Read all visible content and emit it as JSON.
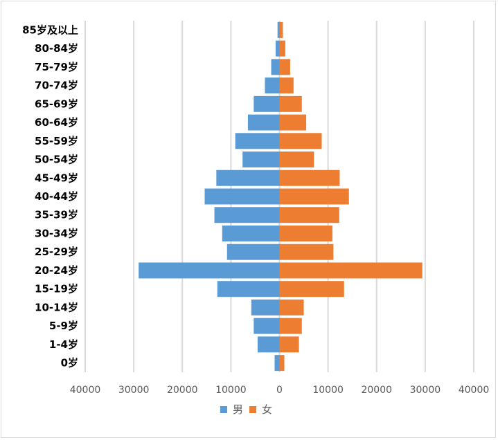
{
  "chart_data": {
    "type": "bar",
    "orientation": "horizontal",
    "layout": "population-pyramid",
    "categories": [
      "0岁",
      "1-4岁",
      "5-9岁",
      "10-14岁",
      "15-19岁",
      "20-24岁",
      "25-29岁",
      "30-34岁",
      "35-39岁",
      "40-44岁",
      "45-49岁",
      "50-54岁",
      "55-59岁",
      "60-64岁",
      "65-69岁",
      "70-74岁",
      "75-79岁",
      "80-84岁",
      "85岁及以上"
    ],
    "series": [
      {
        "name": "男",
        "color": "#5b9bd5",
        "values": [
          1000,
          4500,
          5300,
          5800,
          12800,
          29000,
          10800,
          11800,
          13400,
          15400,
          13000,
          7600,
          9100,
          6500,
          5300,
          3000,
          1700,
          800,
          400
        ]
      },
      {
        "name": "女",
        "color": "#ed7d31",
        "values": [
          1000,
          4000,
          4600,
          5000,
          13300,
          29400,
          11100,
          10900,
          12300,
          14300,
          12400,
          7100,
          8700,
          5500,
          4600,
          2900,
          2200,
          1200,
          700
        ]
      }
    ],
    "xlim": [
      -40000,
      40000
    ],
    "xticks": [
      -40000,
      -30000,
      -20000,
      -10000,
      0,
      10000,
      20000,
      30000,
      40000
    ],
    "xtick_labels": [
      "40000",
      "30000",
      "20000",
      "10000",
      "0",
      "10000",
      "20000",
      "30000",
      "40000"
    ],
    "title": "",
    "xlabel": "",
    "ylabel": "",
    "grid": "vertical",
    "legend_position": "bottom",
    "gridline_color": "#d9d9d9",
    "axis_color": "#d9d9d9"
  }
}
